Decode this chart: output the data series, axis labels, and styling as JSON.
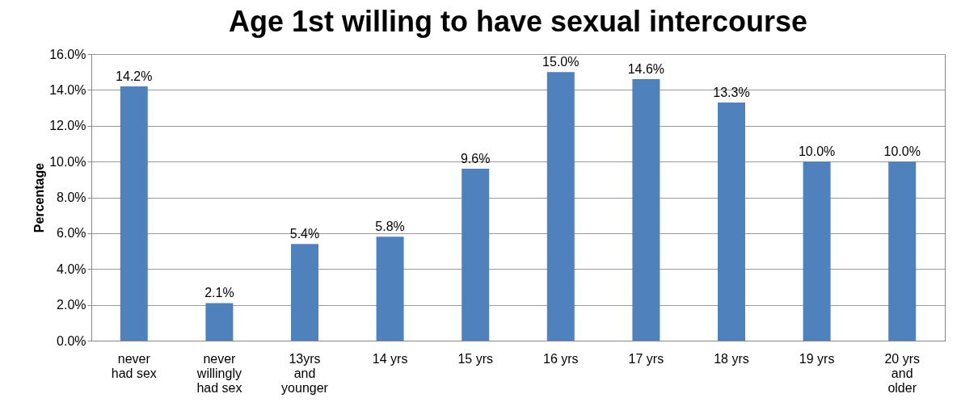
{
  "chart_data": {
    "type": "bar",
    "title": "Age 1st willing to have sexual intercourse",
    "ylabel": "Percentage",
    "categories": [
      "never\nhad sex",
      "never\nwillingly\nhad sex",
      "13yrs\nand\nyounger",
      "14 yrs",
      "15 yrs",
      "16 yrs",
      "17 yrs",
      "18 yrs",
      "19 yrs",
      "20 yrs\nand\nolder"
    ],
    "values": [
      14.2,
      2.1,
      5.4,
      5.8,
      9.6,
      15.0,
      14.6,
      13.3,
      10.0,
      10.0
    ],
    "value_labels": [
      "14.2%",
      "2.1%",
      "5.4%",
      "5.8%",
      "9.6%",
      "15.0%",
      "14.6%",
      "13.3%",
      "10.0%",
      "10.0%"
    ],
    "color": "#4f81bd",
    "ylim": [
      0,
      16
    ],
    "yticks": [
      {
        "value": 0,
        "label": "0.0%"
      },
      {
        "value": 2,
        "label": "2.0%"
      },
      {
        "value": 4,
        "label": "4.0%"
      },
      {
        "value": 6,
        "label": "6.0%"
      },
      {
        "value": 8,
        "label": "8.0%"
      },
      {
        "value": 10,
        "label": "10.0%"
      },
      {
        "value": 12,
        "label": "12.0%"
      },
      {
        "value": 14,
        "label": "14.0%"
      },
      {
        "value": 16,
        "label": "16.0%"
      }
    ],
    "grid": "y"
  }
}
